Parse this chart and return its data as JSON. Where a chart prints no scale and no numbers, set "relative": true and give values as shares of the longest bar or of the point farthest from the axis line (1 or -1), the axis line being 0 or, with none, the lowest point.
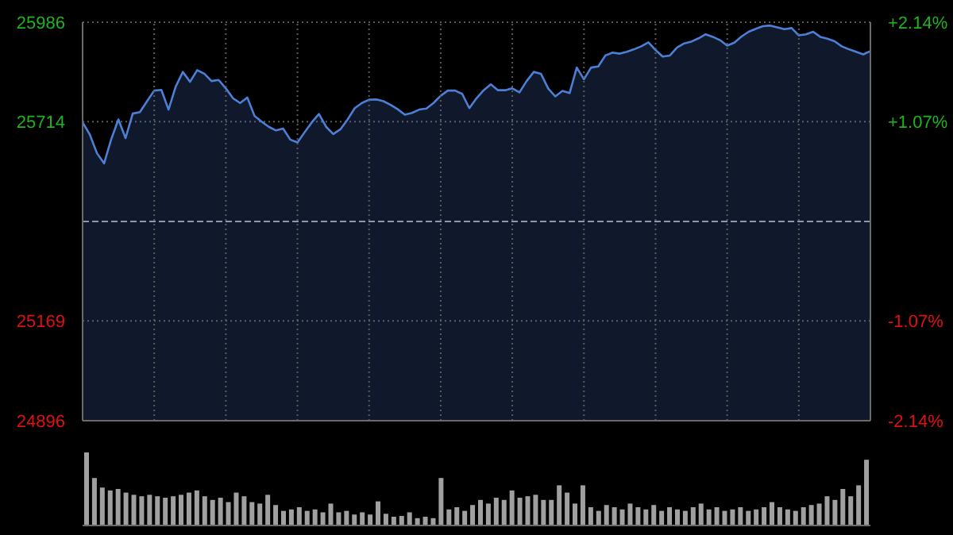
{
  "chart_data": [
    {
      "type": "area",
      "categories": [
        null,
        null,
        null,
        null,
        null,
        null,
        null,
        null,
        null,
        null,
        null,
        null,
        null,
        null,
        null,
        null,
        null,
        null,
        null,
        null,
        null,
        null,
        null,
        null,
        null,
        null,
        null,
        null,
        null,
        null,
        null,
        null,
        null,
        null,
        null,
        null,
        null,
        null,
        null,
        null,
        null,
        null,
        null,
        null,
        null,
        null,
        null,
        null,
        null,
        null,
        null,
        null,
        null,
        null,
        null,
        null,
        null,
        null,
        null,
        null,
        null,
        null,
        null,
        null,
        null,
        null,
        null,
        null,
        null,
        null,
        null,
        null,
        null,
        null,
        null,
        null,
        null,
        null,
        null,
        null,
        null,
        null,
        null,
        null,
        null,
        null,
        null,
        null,
        null,
        null,
        null,
        null,
        null,
        null,
        null,
        null,
        null,
        null,
        null,
        null,
        null,
        null,
        null,
        null,
        null,
        null,
        null,
        null,
        null,
        null,
        null
      ],
      "series": [
        {
          "color": "#4d7fd6",
          "values": [
            25712,
            25679,
            25628,
            25600,
            25666,
            25720,
            25669,
            25736,
            25740,
            25770,
            25799,
            25801,
            25747,
            25810,
            25850,
            25823,
            25855,
            25845,
            25825,
            25828,
            25805,
            25778,
            25765,
            25780,
            25730,
            25714,
            25700,
            25690,
            25695,
            25665,
            25657,
            25685,
            25712,
            25735,
            25700,
            25680,
            25693,
            25720,
            25751,
            25765,
            25774,
            25775,
            25770,
            25760,
            25748,
            25733,
            25738,
            25747,
            25750,
            25765,
            25785,
            25799,
            25799,
            25790,
            25751,
            25778,
            25800,
            25816,
            25800,
            25800,
            25805,
            25794,
            25825,
            25850,
            25845,
            25805,
            25783,
            25798,
            25792,
            25862,
            25830,
            25862,
            25865,
            25895,
            25903,
            25900,
            25905,
            25912,
            25920,
            25931,
            25910,
            25892,
            25895,
            25917,
            25928,
            25933,
            25942,
            25953,
            25946,
            25937,
            25922,
            25930,
            25947,
            25960,
            25968,
            25975,
            25977,
            25972,
            25967,
            25970,
            25950,
            25953,
            25960,
            25946,
            25941,
            25934,
            25920,
            25912,
            25905,
            25898,
            25907
          ]
        }
      ],
      "ylim": [
        24896,
        25986
      ],
      "yticks": [
        24896,
        25169,
        25714,
        25986
      ],
      "y2lim": [
        -2.14,
        2.14
      ],
      "y2ticks": [
        {
          "value": -2.14,
          "label": "-2.14%"
        },
        {
          "value": -1.07,
          "label": "-1.07%"
        },
        {
          "value": 1.07,
          "label": "+1.07%"
        },
        {
          "value": 2.14,
          "label": "+2.14%"
        }
      ],
      "ref_lines": [
        {
          "axis": "y",
          "value": 25441,
          "color": "#8a9aa8",
          "line_style": "dashed"
        }
      ],
      "grid": true
    },
    {
      "type": "bar",
      "relative": true,
      "categories": [
        null,
        null,
        null,
        null,
        null,
        null,
        null,
        null,
        null,
        null,
        null,
        null,
        null,
        null,
        null,
        null,
        null,
        null,
        null,
        null,
        null,
        null,
        null,
        null,
        null,
        null,
        null,
        null,
        null,
        null,
        null,
        null,
        null,
        null,
        null,
        null,
        null,
        null,
        null,
        null,
        null,
        null,
        null,
        null,
        null,
        null,
        null,
        null,
        null,
        null,
        null,
        null,
        null,
        null,
        null,
        null,
        null,
        null,
        null,
        null,
        null,
        null,
        null,
        null,
        null,
        null,
        null,
        null,
        null,
        null,
        null,
        null,
        null,
        null,
        null,
        null,
        null,
        null,
        null,
        null,
        null,
        null,
        null,
        null,
        null,
        null,
        null,
        null,
        null,
        null,
        null,
        null,
        null,
        null,
        null,
        null,
        null,
        null,
        null,
        null
      ],
      "color": "#a0a0a0",
      "values": [
        1.0,
        0.65,
        0.52,
        0.48,
        0.5,
        0.45,
        0.42,
        0.4,
        0.42,
        0.4,
        0.38,
        0.4,
        0.42,
        0.45,
        0.48,
        0.4,
        0.35,
        0.38,
        0.32,
        0.45,
        0.4,
        0.32,
        0.3,
        0.42,
        0.28,
        0.2,
        0.22,
        0.25,
        0.2,
        0.22,
        0.18,
        0.3,
        0.18,
        0.2,
        0.15,
        0.18,
        0.15,
        0.33,
        0.16,
        0.12,
        0.13,
        0.18,
        0.1,
        0.12,
        0.1,
        0.65,
        0.22,
        0.25,
        0.2,
        0.28,
        0.35,
        0.3,
        0.38,
        0.35,
        0.48,
        0.38,
        0.4,
        0.42,
        0.35,
        0.35,
        0.55,
        0.45,
        0.3,
        0.55,
        0.25,
        0.2,
        0.28,
        0.25,
        0.22,
        0.3,
        0.25,
        0.22,
        0.28,
        0.2,
        0.25,
        0.22,
        0.2,
        0.25,
        0.3,
        0.22,
        0.25,
        0.2,
        0.22,
        0.25,
        0.2,
        0.22,
        0.25,
        0.32,
        0.25,
        0.22,
        0.2,
        0.25,
        0.28,
        0.3,
        0.4,
        0.35,
        0.5,
        0.4,
        0.55,
        0.9
      ]
    }
  ]
}
